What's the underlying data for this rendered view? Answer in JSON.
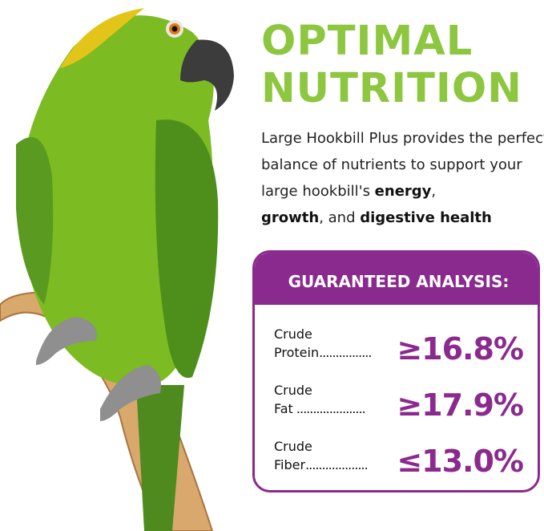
{
  "headline": {
    "line1": "OPTIMAL",
    "line2": "NUTRITION"
  },
  "intro": {
    "part1": "Large Hookbill Plus provides the perfect balance of nutrients to support your large hookbill's ",
    "bold1": "energy",
    "sep1": ", ",
    "bold2": "growth",
    "sep2": ", and ",
    "bold3": "digestive health"
  },
  "analysis": {
    "title": "GUARANTEED ANALYSIS:",
    "rows": [
      {
        "line1": "Crude",
        "line2": "Protein",
        "dots": "................",
        "value": "≥16.8%"
      },
      {
        "line1": "Crude",
        "line2": "Fat",
        "dots": " .....................",
        "value": "≥17.9%"
      },
      {
        "line1": "Crude",
        "line2": "Fiber",
        "dots": "...................",
        "value": "≤13.0%"
      }
    ]
  },
  "colors": {
    "green": "#8dc63f",
    "purple": "#8b2a8e"
  }
}
